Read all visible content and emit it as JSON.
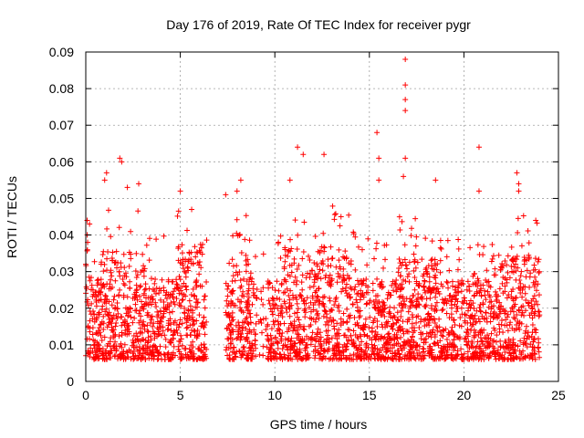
{
  "chart_data": {
    "type": "scatter",
    "title": "Day 176 of 2019, Rate Of TEC Index for receiver pygr",
    "xlabel": "GPS time / hours",
    "ylabel": "ROTI / TECUs",
    "xlim": [
      0,
      25
    ],
    "ylim": [
      0,
      0.09
    ],
    "xticks": [
      0,
      5,
      10,
      15,
      20,
      25
    ],
    "yticks": [
      0,
      0.01,
      0.02,
      0.03,
      0.04,
      0.05,
      0.06,
      0.07,
      0.08,
      0.09
    ],
    "xtick_labels": [
      "0",
      "5",
      "10",
      "15",
      "20",
      "25"
    ],
    "ytick_labels": [
      "0",
      "0.01",
      "0.02",
      "0.03",
      "0.04",
      "0.05",
      "0.06",
      "0.07",
      "0.08",
      "0.09"
    ],
    "grid": true,
    "marker": "+",
    "color": "#ff0000",
    "data_gap_hours": [
      6.4,
      7.4
    ],
    "series": [
      {
        "name": "ROTI",
        "highlight_points": [
          [
            0.0,
            0.032
          ],
          [
            0.1,
            0.038
          ],
          [
            0.2,
            0.043
          ],
          [
            1.0,
            0.055
          ],
          [
            1.1,
            0.057
          ],
          [
            1.8,
            0.061
          ],
          [
            1.9,
            0.06
          ],
          [
            2.2,
            0.053
          ],
          [
            2.8,
            0.054
          ],
          [
            5.0,
            0.052
          ],
          [
            5.6,
            0.047
          ],
          [
            7.4,
            0.051
          ],
          [
            8.0,
            0.052
          ],
          [
            8.2,
            0.055
          ],
          [
            10.8,
            0.055
          ],
          [
            11.2,
            0.064
          ],
          [
            11.5,
            0.062
          ],
          [
            12.6,
            0.062
          ],
          [
            13.5,
            0.045
          ],
          [
            15.4,
            0.068
          ],
          [
            15.5,
            0.061
          ],
          [
            15.5,
            0.055
          ],
          [
            16.9,
            0.088
          ],
          [
            16.9,
            0.081
          ],
          [
            16.9,
            0.077
          ],
          [
            16.9,
            0.074
          ],
          [
            16.9,
            0.061
          ],
          [
            16.8,
            0.056
          ],
          [
            18.5,
            0.055
          ],
          [
            20.8,
            0.064
          ],
          [
            20.8,
            0.052
          ],
          [
            22.8,
            0.057
          ],
          [
            22.9,
            0.054
          ],
          [
            22.9,
            0.052
          ],
          [
            23.8,
            0.044
          ]
        ]
      }
    ]
  }
}
